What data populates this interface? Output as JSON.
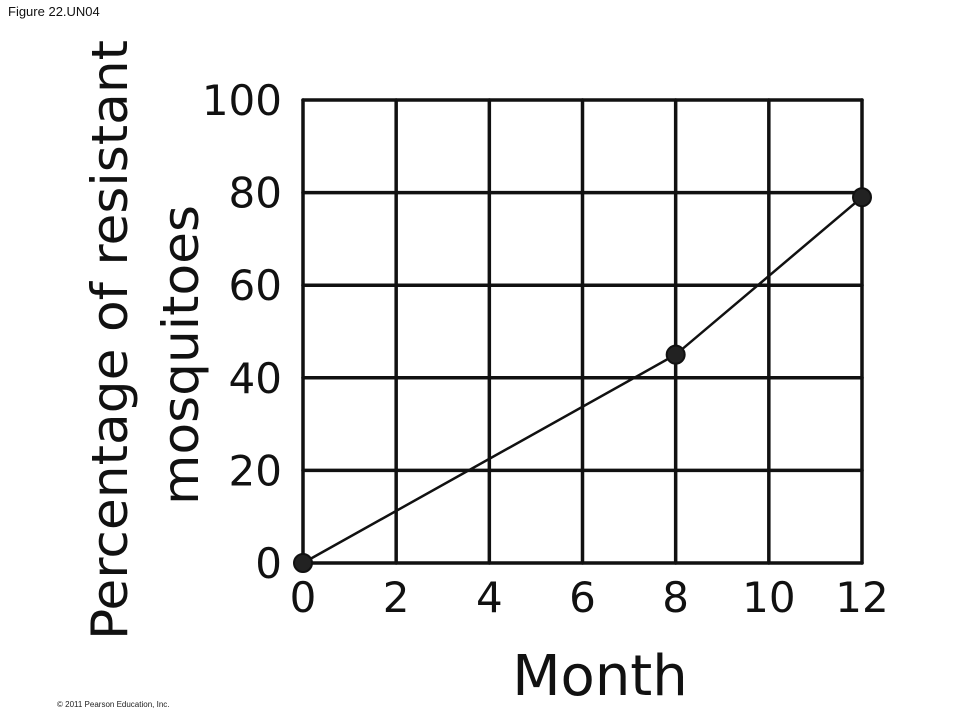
{
  "figure_label": "Figure 22.UN04",
  "copyright": "© 2011 Pearson Education, Inc.",
  "colors": {
    "ink": "#111111",
    "background": "#ffffff"
  },
  "chart_data": {
    "type": "line",
    "title": "",
    "xlabel": "Month",
    "ylabel_lines": [
      "Percentage of resistant",
      "mosquitoes"
    ],
    "xlim": [
      0,
      12
    ],
    "ylim": [
      0,
      100
    ],
    "x_ticks": [
      "0",
      "2",
      "4",
      "6",
      "8",
      "10",
      "12"
    ],
    "y_ticks": [
      "0",
      "20",
      "40",
      "60",
      "80",
      "100"
    ],
    "grid": true,
    "series": [
      {
        "x": [
          0,
          8,
          12
        ],
        "y": [
          0,
          45,
          79
        ]
      }
    ]
  }
}
